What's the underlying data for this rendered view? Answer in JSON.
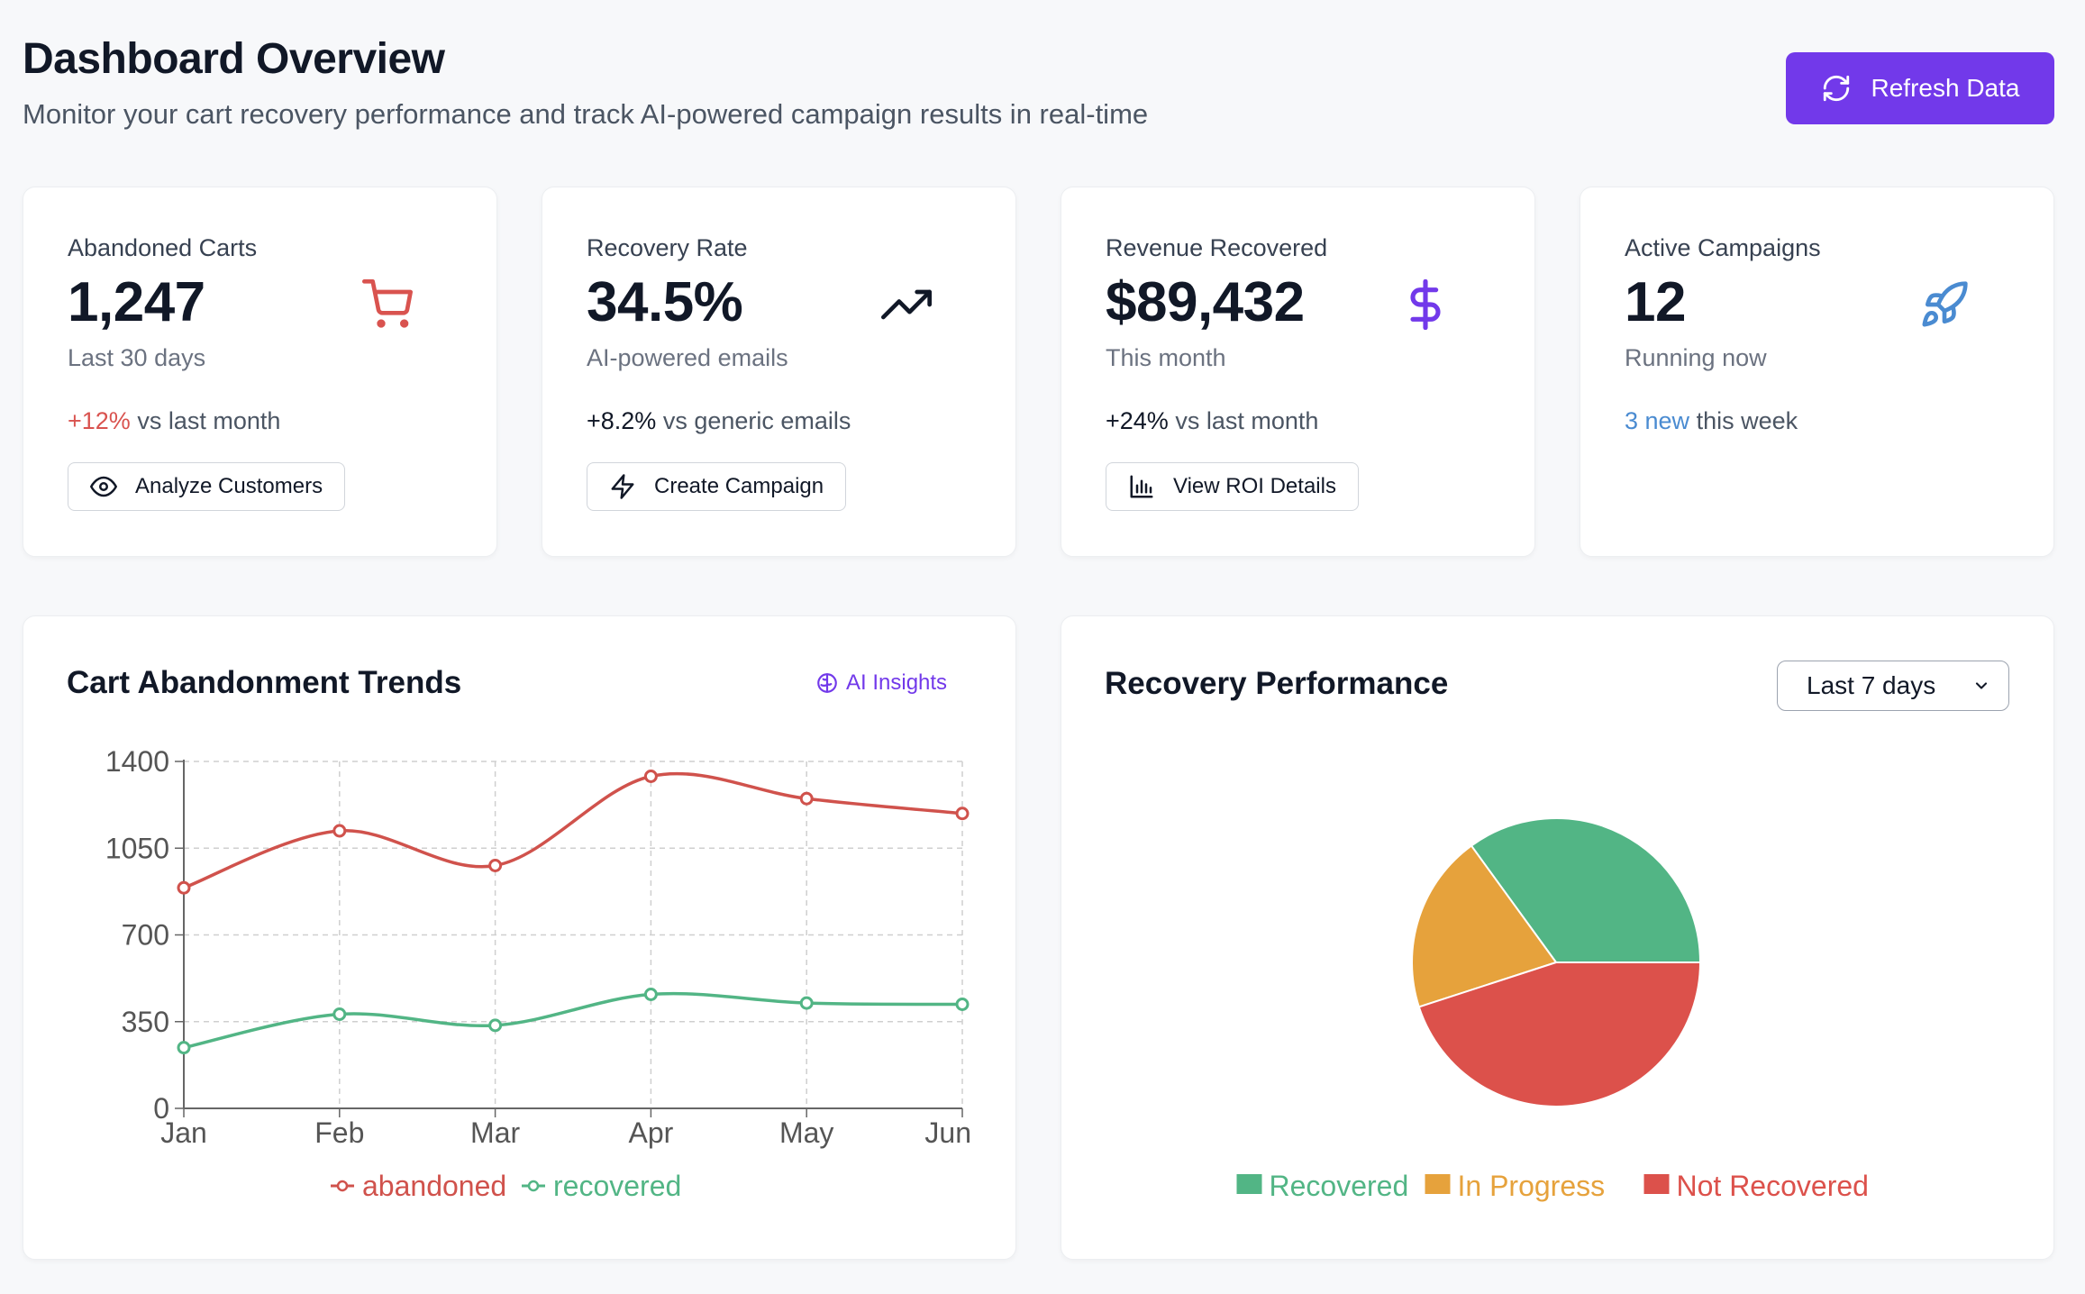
{
  "header": {
    "title": "Dashboard Overview",
    "subtitle": "Monitor your cart recovery performance and track AI-powered campaign results in real-time",
    "refresh_label": "Refresh Data"
  },
  "stats": [
    {
      "label": "Abandoned Carts",
      "value": "1,247",
      "sub": "Last 30 days",
      "trend_value": "+12%",
      "trend_text": " vs last month",
      "trend_color": "#d9534f",
      "icon": "cart-icon",
      "button": "Analyze Customers",
      "button_icon": "eye-icon"
    },
    {
      "label": "Recovery Rate",
      "value": "34.5%",
      "sub": "AI-powered emails",
      "trend_value": "+8.2%",
      "trend_text": " vs generic emails",
      "trend_color": "#111827",
      "icon": "trending-up-icon",
      "button": "Create Campaign",
      "button_icon": "lightning-icon"
    },
    {
      "label": "Revenue Recovered",
      "value": "$89,432",
      "sub": "This month",
      "trend_value": "+24%",
      "trend_text": " vs last month",
      "trend_color": "#111827",
      "icon": "dollar-icon",
      "button": "View ROI Details",
      "button_icon": "bar-chart-icon"
    },
    {
      "label": "Active Campaigns",
      "value": "12",
      "sub": "Running now",
      "trend_value": "3 new",
      "trend_text": " this week",
      "trend_color": "#4a8bd1",
      "icon": "rocket-icon"
    }
  ],
  "trends_panel": {
    "title": "Cart Abandonment Trends",
    "ai_label": "AI Insights"
  },
  "performance_panel": {
    "title": "Recovery Performance",
    "range": "Last 7 days"
  },
  "colors": {
    "accent": "#7239ea",
    "abandoned": "#d0524c",
    "recovered": "#52b585",
    "in_progress": "#e6a23c",
    "not_recovered": "#dc514b"
  },
  "chart_data": [
    {
      "type": "line",
      "title": "Cart Abandonment Trends",
      "categories": [
        "Jan",
        "Feb",
        "Mar",
        "Apr",
        "May",
        "Jun"
      ],
      "series": [
        {
          "name": "abandoned",
          "values": [
            890,
            1120,
            980,
            1340,
            1250,
            1190
          ]
        },
        {
          "name": "recovered",
          "values": [
            245,
            380,
            335,
            460,
            425,
            420
          ]
        }
      ],
      "ylim": [
        0,
        1400
      ],
      "yticks": [
        0,
        350,
        700,
        1050,
        1400
      ],
      "grid": true,
      "legend": "bottom"
    },
    {
      "type": "pie",
      "title": "Recovery Performance",
      "labels": [
        "Recovered",
        "In Progress",
        "Not Recovered"
      ],
      "values": [
        35,
        20,
        45
      ],
      "legend": "bottom"
    }
  ]
}
